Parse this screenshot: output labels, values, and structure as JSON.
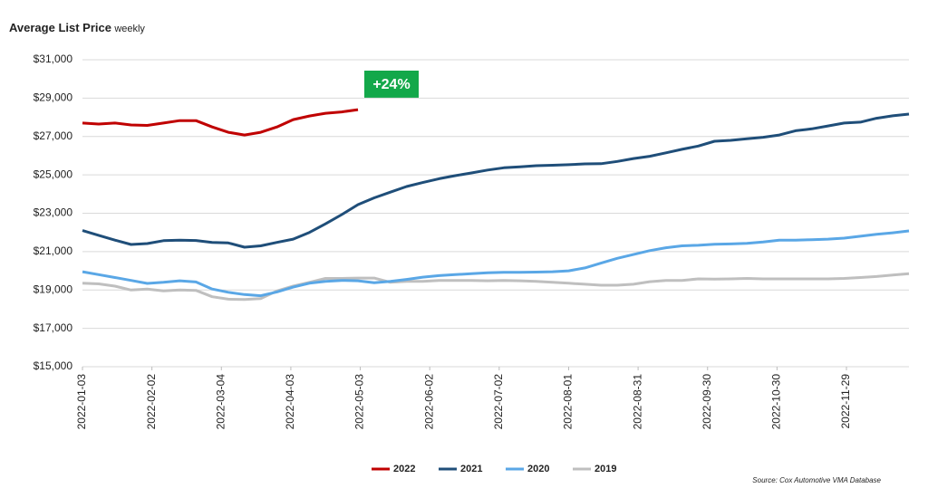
{
  "chart_data": {
    "type": "line",
    "title": "Average List Price",
    "subtitle": "weekly",
    "annotation": "+24%",
    "annotation_color": "#13a84a",
    "source": "Source:  Cox Automotive VMA Database",
    "x": [
      "2022-01-03",
      "2022-01-10",
      "2022-01-17",
      "2022-01-24",
      "2022-01-31",
      "2022-02-07",
      "2022-02-14",
      "2022-02-21",
      "2022-02-28",
      "2022-03-07",
      "2022-03-14",
      "2022-03-21",
      "2022-03-28",
      "2022-04-04",
      "2022-04-11",
      "2022-04-18",
      "2022-04-25",
      "2022-05-02",
      "2022-05-09",
      "2022-05-16",
      "2022-05-23",
      "2022-05-30",
      "2022-06-06",
      "2022-06-13",
      "2022-06-20",
      "2022-06-27",
      "2022-07-04",
      "2022-07-11",
      "2022-07-18",
      "2022-07-25",
      "2022-08-01",
      "2022-08-08",
      "2022-08-15",
      "2022-08-22",
      "2022-08-29",
      "2022-09-05",
      "2022-09-12",
      "2022-09-19",
      "2022-09-26",
      "2022-10-03",
      "2022-10-10",
      "2022-10-17",
      "2022-10-24",
      "2022-10-31",
      "2022-11-07",
      "2022-11-14",
      "2022-11-21",
      "2022-11-28",
      "2022-12-05",
      "2022-12-12",
      "2022-12-19",
      "2022-12-26"
    ],
    "xlim": [
      "2022-01-03",
      "2022-12-26"
    ],
    "xticks": [
      "2022-01-03",
      "2022-02-02",
      "2022-03-04",
      "2022-04-03",
      "2022-05-03",
      "2022-06-02",
      "2022-07-02",
      "2022-08-01",
      "2022-08-31",
      "2022-09-30",
      "2022-10-30",
      "2022-11-29"
    ],
    "ylim": [
      15000,
      31000
    ],
    "yticks": [
      {
        "value": 15000,
        "label": "$15,000"
      },
      {
        "value": 17000,
        "label": "$17,000"
      },
      {
        "value": 19000,
        "label": "$19,000"
      },
      {
        "value": 21000,
        "label": "$21,000"
      },
      {
        "value": 23000,
        "label": "$23,000"
      },
      {
        "value": 25000,
        "label": "$25,000"
      },
      {
        "value": 27000,
        "label": "$27,000"
      },
      {
        "value": 29000,
        "label": "$29,000"
      },
      {
        "value": 31000,
        "label": "$31,000"
      }
    ],
    "grid": true,
    "legend": "bottom",
    "series": [
      {
        "name": "2022",
        "color": "#c00000",
        "values": [
          27700,
          27650,
          27700,
          27600,
          27580,
          27700,
          27830,
          27830,
          27500,
          27220,
          27080,
          27220,
          27500,
          27880,
          28070,
          28210,
          28280,
          28400,
          null,
          null,
          null,
          null,
          null,
          null,
          null,
          null,
          null,
          null,
          null,
          null,
          null,
          null,
          null,
          null,
          null,
          null,
          null,
          null,
          null,
          null,
          null,
          null,
          null,
          null,
          null,
          null,
          null,
          null,
          null,
          null,
          null,
          null
        ]
      },
      {
        "name": "2021",
        "color": "#1f4e79",
        "values": [
          22100,
          21850,
          21600,
          21370,
          21420,
          21570,
          21600,
          21580,
          21480,
          21450,
          21230,
          21300,
          21480,
          21650,
          22000,
          22450,
          22930,
          23450,
          23800,
          24100,
          24390,
          24600,
          24800,
          24960,
          25100,
          25250,
          25370,
          25420,
          25480,
          25500,
          25530,
          25570,
          25580,
          25700,
          25850,
          25970,
          26150,
          26330,
          26500,
          26750,
          26800,
          26880,
          26960,
          27080,
          27300,
          27400,
          27550,
          27700,
          27750,
          27950,
          28080,
          28170
        ]
      },
      {
        "name": "2020",
        "color": "#5aa7e6",
        "values": [
          19950,
          19800,
          19650,
          19500,
          19340,
          19400,
          19480,
          19420,
          19050,
          18880,
          18760,
          18700,
          18900,
          19150,
          19350,
          19450,
          19500,
          19480,
          19380,
          19450,
          19550,
          19670,
          19750,
          19800,
          19850,
          19900,
          19920,
          19920,
          19930,
          19950,
          20000,
          20150,
          20400,
          20650,
          20850,
          21050,
          21200,
          21300,
          21330,
          21380,
          21400,
          21430,
          21500,
          21600,
          21600,
          21620,
          21650,
          21700,
          21800,
          21900,
          21980,
          22080
        ]
      },
      {
        "name": "2019",
        "color": "#bfbfbf",
        "values": [
          19350,
          19320,
          19200,
          19000,
          19050,
          18950,
          19000,
          18980,
          18650,
          18520,
          18500,
          18550,
          18950,
          19200,
          19400,
          19600,
          19600,
          19620,
          19620,
          19400,
          19450,
          19450,
          19500,
          19500,
          19500,
          19480,
          19500,
          19480,
          19450,
          19400,
          19350,
          19300,
          19250,
          19250,
          19300,
          19430,
          19500,
          19500,
          19580,
          19570,
          19580,
          19600,
          19580,
          19580,
          19580,
          19580,
          19580,
          19600,
          19650,
          19700,
          19780,
          19850
        ]
      }
    ]
  }
}
